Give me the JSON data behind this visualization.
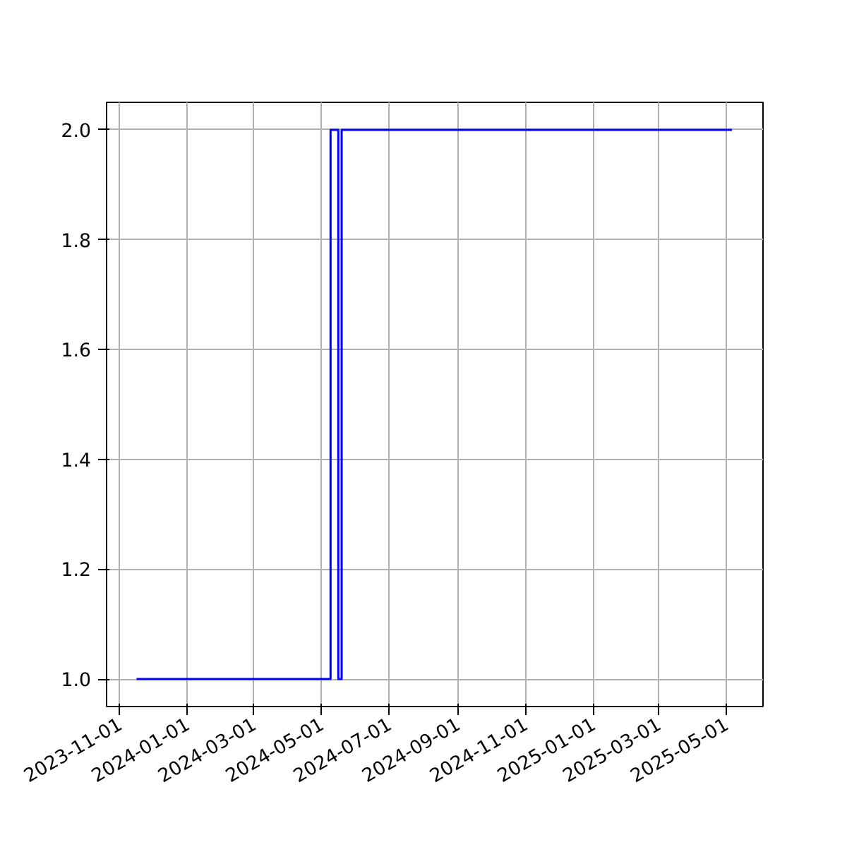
{
  "chart_data": {
    "type": "step",
    "x": [
      "2023-11-16",
      "2024-05-09",
      "2024-05-16",
      "2024-05-19",
      "2025-05-06"
    ],
    "series": [
      {
        "color": "#0000ff",
        "values": [
          1,
          2,
          1,
          2,
          2
        ]
      }
    ],
    "xlim": [
      "2023-10-20",
      "2025-06-03"
    ],
    "xticks": [
      "2023-11-01",
      "2024-01-01",
      "2024-03-01",
      "2024-05-01",
      "2024-07-01",
      "2024-09-01",
      "2024-11-01",
      "2025-01-01",
      "2025-03-01",
      "2025-05-01"
    ],
    "ylim": [
      0.95,
      2.05
    ],
    "yticks": [
      {
        "value": 1,
        "label": "1.0"
      },
      1.2,
      1.4,
      1.6,
      1.8,
      {
        "value": 2,
        "label": "2.0"
      }
    ],
    "grid": true,
    "line_style": "solid"
  }
}
